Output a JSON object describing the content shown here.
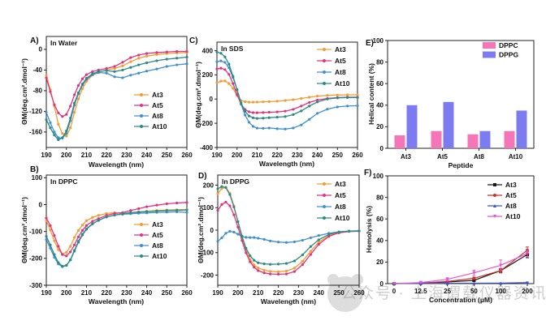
{
  "figure": {
    "watermark": {
      "text": "公众号 · 上海谓载仪器资讯"
    }
  },
  "chart_data": [
    {
      "id": "A",
      "panel_label": "A)",
      "title": "In Water",
      "type": "line",
      "xlabel": "Wavelength (nm)",
      "ylabel": "ΘM(deg.cm².dmol⁻¹)",
      "xlim": [
        190,
        260
      ],
      "ylim": [
        -190,
        25
      ],
      "xticks": [
        190,
        200,
        210,
        220,
        230,
        240,
        250,
        260
      ],
      "yticks": [
        0,
        -40,
        -80,
        -120,
        -160
      ],
      "legend_position": "center-right",
      "x": [
        190,
        192,
        194,
        196,
        198,
        200,
        202,
        204,
        206,
        208,
        210,
        213,
        216,
        220,
        224,
        228,
        232,
        236,
        240,
        245,
        250,
        255,
        260
      ],
      "series": [
        {
          "name": "At3",
          "color": "#F59B32",
          "marker": "circle",
          "y": [
            -50,
            -78,
            -110,
            -145,
            -163,
            -168,
            -152,
            -122,
            -96,
            -76,
            -62,
            -50,
            -44,
            -40,
            -37,
            -32,
            -24,
            -17,
            -13,
            -10,
            -8,
            -7,
            -6
          ]
        },
        {
          "name": "At5",
          "color": "#E0337E",
          "marker": "circle",
          "y": [
            -55,
            -82,
            -107,
            -123,
            -130,
            -126,
            -110,
            -88,
            -70,
            -57,
            -49,
            -43,
            -40,
            -37,
            -33,
            -25,
            -16,
            -11,
            -8,
            -6,
            -5,
            -4,
            -4
          ]
        },
        {
          "name": "At8",
          "color": "#3F8FD2",
          "marker": "circle",
          "y": [
            -122,
            -142,
            -160,
            -171,
            -172,
            -163,
            -138,
            -108,
            -86,
            -69,
            -58,
            -49,
            -45,
            -46,
            -53,
            -55,
            -50,
            -46,
            -42,
            -38,
            -33,
            -30,
            -28
          ]
        },
        {
          "name": "At10",
          "color": "#2B8A84",
          "marker": "circle",
          "y": [
            -136,
            -152,
            -166,
            -175,
            -171,
            -158,
            -133,
            -104,
            -84,
            -67,
            -56,
            -47,
            -43,
            -41,
            -43,
            -40,
            -35,
            -30,
            -26,
            -22,
            -19,
            -17,
            -15
          ]
        }
      ]
    },
    {
      "id": "B",
      "panel_label": "B)",
      "title": "In DPPC",
      "type": "line",
      "xlabel": "Wavelength (nm)",
      "ylabel": "ΘM(deg.cm².dmol⁻¹)",
      "xlim": [
        190,
        260
      ],
      "ylim": [
        -300,
        110
      ],
      "xticks": [
        190,
        200,
        210,
        220,
        230,
        240,
        250,
        260
      ],
      "yticks": [
        100,
        0,
        -100,
        -200,
        -300
      ],
      "legend_position": "center-right",
      "x": [
        190,
        192,
        194,
        196,
        198,
        200,
        202,
        204,
        206,
        208,
        210,
        213,
        216,
        220,
        224,
        228,
        232,
        236,
        240,
        245,
        250,
        255,
        260
      ],
      "series": [
        {
          "name": "At3",
          "color": "#F59B32",
          "marker": "circle",
          "y": [
            -60,
            -95,
            -135,
            -168,
            -183,
            -178,
            -155,
            -122,
            -96,
            -76,
            -60,
            -48,
            -40,
            -33,
            -30,
            -32,
            -30,
            -27,
            -25,
            -22,
            -20,
            -19,
            -18
          ]
        },
        {
          "name": "At5",
          "color": "#E0337E",
          "marker": "circle",
          "y": [
            -50,
            -78,
            -115,
            -155,
            -186,
            -191,
            -176,
            -150,
            -120,
            -96,
            -78,
            -62,
            -52,
            -40,
            -33,
            -30,
            -22,
            -15,
            -8,
            -2,
            3,
            6,
            8
          ]
        },
        {
          "name": "At8",
          "color": "#3F8FD2",
          "marker": "circle",
          "y": [
            -130,
            -162,
            -196,
            -221,
            -231,
            -226,
            -205,
            -170,
            -136,
            -110,
            -90,
            -71,
            -59,
            -46,
            -39,
            -36,
            -34,
            -32,
            -31,
            -29,
            -28,
            -27,
            -29
          ]
        },
        {
          "name": "At10",
          "color": "#2B8A84",
          "marker": "circle",
          "y": [
            -118,
            -150,
            -186,
            -216,
            -229,
            -226,
            -206,
            -173,
            -140,
            -113,
            -92,
            -72,
            -58,
            -46,
            -39,
            -34,
            -30,
            -28,
            -26,
            -24,
            -22,
            -21,
            -20
          ]
        }
      ]
    },
    {
      "id": "C",
      "panel_label": "C)",
      "title": "In SDS",
      "type": "line",
      "xlabel": "Wavelength (nm)",
      "ylabel": "ΘM(deg.cm².dmol⁻¹)",
      "xlim": [
        190,
        260
      ],
      "ylim": [
        -400,
        470
      ],
      "xticks": [
        190,
        200,
        210,
        220,
        230,
        240,
        250,
        260
      ],
      "yticks": [
        400,
        200,
        0,
        -200,
        -400
      ],
      "legend_position": "top-right",
      "x": [
        190,
        192,
        194,
        196,
        198,
        200,
        202,
        204,
        206,
        208,
        210,
        213,
        216,
        220,
        224,
        228,
        232,
        236,
        240,
        245,
        250,
        255,
        260
      ],
      "series": [
        {
          "name": "At3",
          "color": "#F59B32",
          "marker": "circle",
          "y": [
            135,
            148,
            150,
            128,
            88,
            28,
            -12,
            -22,
            -26,
            -26,
            -25,
            -23,
            -21,
            -18,
            -12,
            -5,
            5,
            15,
            24,
            30,
            33,
            35,
            35
          ]
        },
        {
          "name": "At5",
          "color": "#E0337E",
          "marker": "circle",
          "y": [
            248,
            255,
            243,
            203,
            128,
            38,
            -42,
            -86,
            -105,
            -112,
            -113,
            -111,
            -109,
            -106,
            -100,
            -85,
            -58,
            -28,
            -8,
            5,
            12,
            15,
            15
          ]
        },
        {
          "name": "At8",
          "color": "#3F8FD2",
          "marker": "circle",
          "y": [
            308,
            315,
            303,
            258,
            178,
            78,
            -42,
            -132,
            -192,
            -226,
            -240,
            -242,
            -239,
            -245,
            -248,
            -239,
            -214,
            -168,
            -118,
            -84,
            -65,
            -58,
            -55
          ]
        },
        {
          "name": "At10",
          "color": "#2B8A84",
          "marker": "circle",
          "y": [
            388,
            378,
            348,
            288,
            188,
            78,
            -32,
            -102,
            -140,
            -155,
            -160,
            -158,
            -154,
            -150,
            -145,
            -128,
            -98,
            -58,
            -24,
            0,
            9,
            12,
            13
          ]
        }
      ]
    },
    {
      "id": "D",
      "panel_label": "D)",
      "title": "In DPPG",
      "type": "line",
      "xlabel": "Wavelength (nm)",
      "ylabel": "ΘM(deg.cm².dmol⁻¹)",
      "xlim": [
        190,
        260
      ],
      "ylim": [
        -245,
        245
      ],
      "xticks": [
        190,
        200,
        210,
        220,
        230,
        240,
        250,
        260
      ],
      "yticks": [
        200,
        100,
        0,
        -100,
        -200
      ],
      "legend_position": "top-right",
      "x": [
        190,
        192,
        194,
        196,
        198,
        200,
        202,
        204,
        206,
        208,
        210,
        213,
        216,
        220,
        224,
        228,
        232,
        236,
        240,
        245,
        250,
        255,
        260
      ],
      "series": [
        {
          "name": "At3",
          "color": "#F59B32",
          "marker": "circle",
          "y": [
            162,
            185,
            191,
            164,
            108,
            38,
            -32,
            -92,
            -131,
            -155,
            -168,
            -178,
            -183,
            -185,
            -182,
            -169,
            -138,
            -94,
            -54,
            -24,
            -10,
            -5,
            -4
          ]
        },
        {
          "name": "At5",
          "color": "#E0337E",
          "marker": "circle",
          "y": [
            88,
            114,
            125,
            108,
            68,
            13,
            -46,
            -101,
            -141,
            -165,
            -180,
            -190,
            -195,
            -196,
            -195,
            -184,
            -153,
            -108,
            -63,
            -28,
            -12,
            -6,
            -5
          ]
        },
        {
          "name": "At8",
          "color": "#3F8FD2",
          "marker": "circle",
          "y": [
            -50,
            -34,
            -14,
            -5,
            -9,
            -18,
            -28,
            -32,
            -33,
            -33,
            -36,
            -41,
            -48,
            -53,
            -55,
            -52,
            -45,
            -34,
            -24,
            -14,
            -8,
            -5,
            -4
          ]
        },
        {
          "name": "At10",
          "color": "#2B8A84",
          "marker": "circle",
          "y": [
            184,
            194,
            189,
            158,
            103,
            38,
            -26,
            -81,
            -114,
            -134,
            -145,
            -150,
            -152,
            -151,
            -148,
            -137,
            -110,
            -73,
            -43,
            -19,
            -8,
            -4,
            -3
          ]
        }
      ]
    },
    {
      "id": "E",
      "panel_label": "E)",
      "title": "",
      "type": "bar",
      "xlabel": "Peptide",
      "ylabel": "Helical content (%)",
      "ylim": [
        0,
        100
      ],
      "yticks": [
        100,
        80,
        60,
        40,
        20,
        0
      ],
      "legend_position": "top-right",
      "categories": [
        "At3",
        "At5",
        "At8",
        "At10"
      ],
      "series": [
        {
          "name": "DPPC",
          "color": "#F576B8",
          "values": [
            12,
            16,
            13,
            16
          ]
        },
        {
          "name": "DPPG",
          "color": "#7C7CF0",
          "values": [
            40,
            43,
            16,
            35
          ]
        }
      ]
    },
    {
      "id": "F",
      "panel_label": "F)",
      "title": "",
      "type": "line-cat",
      "xlabel": "Concentration (μM)",
      "ylabel": "Hemolysis (%)",
      "ylim": [
        0,
        100
      ],
      "yticks": [
        100,
        80,
        60,
        40,
        20,
        0
      ],
      "legend_position": "top-right",
      "xtick_labels": [
        "0",
        "12.5",
        "25",
        "50",
        "100",
        "200"
      ],
      "series": [
        {
          "name": "At3",
          "color": "#1A1A1A",
          "marker": "square",
          "y": [
            0,
            0.5,
            1.5,
            3,
            12,
            27
          ],
          "yerr": [
            0,
            0,
            0,
            1,
            2,
            3
          ]
        },
        {
          "name": "At5",
          "color": "#CB3228",
          "marker": "circle",
          "y": [
            0,
            0.5,
            2,
            5,
            12,
            31
          ],
          "yerr": [
            0,
            0,
            0,
            1,
            2,
            3
          ]
        },
        {
          "name": "At8",
          "color": "#3A55CC",
          "marker": "tri-up",
          "y": [
            0,
            0.2,
            0.3,
            0.4,
            0.5,
            1
          ],
          "yerr": [
            0,
            0,
            0,
            0,
            0,
            0.5
          ]
        },
        {
          "name": "At10",
          "color": "#E455D4",
          "marker": "tri-down",
          "y": [
            0,
            1,
            4,
            10,
            17,
            28
          ],
          "yerr": [
            0,
            0.5,
            1.5,
            2.5,
            5,
            3
          ]
        }
      ]
    }
  ]
}
